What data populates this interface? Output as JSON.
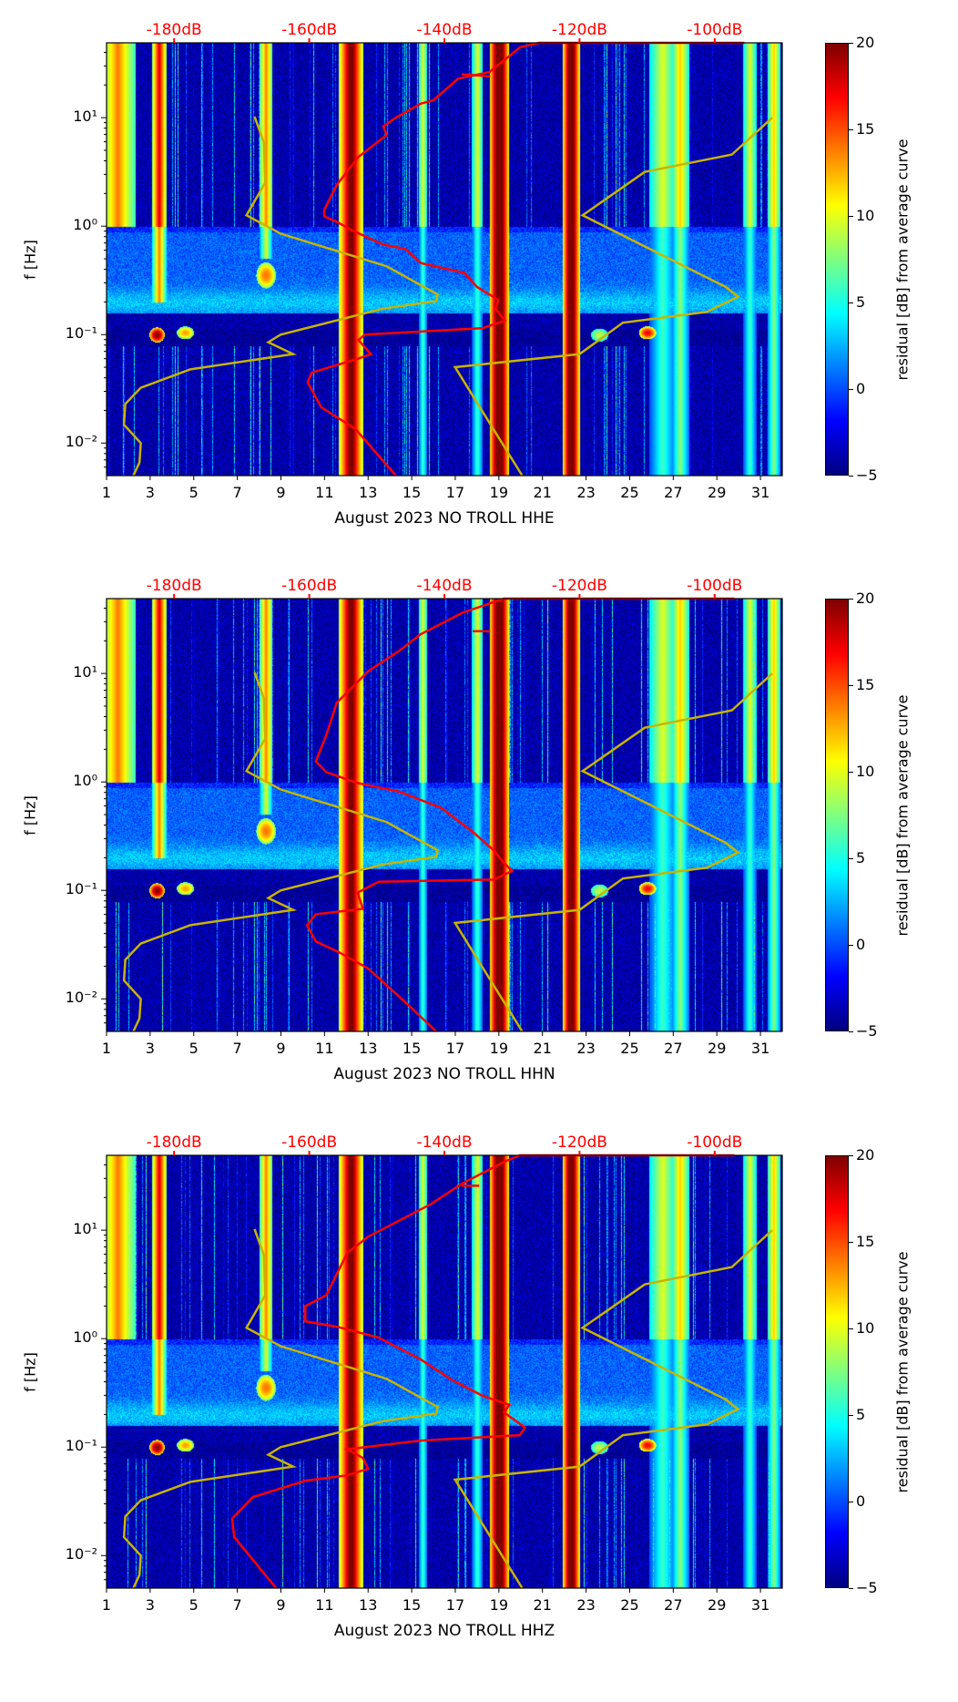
{
  "chart_data": {
    "type": "heatmap",
    "colorbar": {
      "label": "residual [dB] from average curve",
      "range": [
        -5,
        20
      ],
      "ticks": [
        "20",
        "15",
        "10",
        "5",
        "0",
        "−5"
      ],
      "tick_values": [
        20,
        15,
        10,
        5,
        0,
        -5
      ],
      "colormap": "jet"
    },
    "x_ticks": [
      "1",
      "3",
      "5",
      "7",
      "9",
      "11",
      "13",
      "15",
      "17",
      "19",
      "21",
      "23",
      "25",
      "27",
      "29",
      "31"
    ],
    "x_tick_values": [
      1,
      3,
      5,
      7,
      9,
      11,
      13,
      15,
      17,
      19,
      21,
      23,
      25,
      27,
      29,
      31
    ],
    "xlim": [
      1,
      32
    ],
    "top_axis": {
      "labels": [
        "-180dB",
        "-160dB",
        "-140dB",
        "-120dB",
        "-100dB"
      ],
      "tick_days": [
        4.1,
        10.3,
        16.5,
        22.7,
        28.9
      ],
      "color": "#ff0000"
    },
    "ylabel": "f [Hz]",
    "y_ticks": [
      "10¹",
      "10⁰",
      "10⁻¹",
      "10⁻²"
    ],
    "y_tick_values": [
      10,
      1,
      0.1,
      0.01
    ],
    "ylim_log10": [
      -2.3,
      1.69
    ],
    "reference_curve_color": "#c8b400",
    "psd_curve_color": "#ff0000",
    "reference_low_curve": [
      [
        7.79,
        1.01
      ],
      [
        8.22,
        0.77
      ],
      [
        8.28,
        0.4
      ],
      [
        7.42,
        0.1
      ],
      [
        8.99,
        -0.07
      ],
      [
        13.85,
        -0.37
      ],
      [
        16.19,
        -0.63
      ],
      [
        16.13,
        -0.69
      ],
      [
        13.7,
        -0.76
      ],
      [
        8.99,
        -1.0
      ],
      [
        8.42,
        -1.07
      ],
      [
        9.56,
        -1.18
      ],
      [
        4.85,
        -1.32
      ],
      [
        2.57,
        -1.49
      ],
      [
        1.86,
        -1.64
      ],
      [
        1.8,
        -1.83
      ],
      [
        2.57,
        -2.0
      ],
      [
        2.51,
        -2.18
      ],
      [
        2.23,
        -2.3
      ]
    ],
    "reference_high_curve": [
      [
        20.07,
        -2.3
      ],
      [
        16.99,
        -1.3
      ],
      [
        22.7,
        -1.18
      ],
      [
        24.69,
        -0.89
      ],
      [
        28.55,
        -0.79
      ],
      [
        29.97,
        -0.65
      ],
      [
        29.4,
        -0.56
      ],
      [
        22.84,
        0.1
      ],
      [
        25.69,
        0.5
      ],
      [
        29.69,
        0.66
      ],
      [
        31.54,
        1.0
      ]
    ],
    "curve_point_format": "[x position on day axis (top axis dB scale), log10 frequency Hz]",
    "panels": [
      {
        "xlabel": "August 2023 NO TROLL  HHE",
        "seed": 11,
        "psd_curve": [
          [
            14.27,
            -2.3
          ],
          [
            12.42,
            -1.87
          ],
          [
            10.85,
            -1.67
          ],
          [
            10.22,
            -1.44
          ],
          [
            10.42,
            -1.35
          ],
          [
            12.56,
            -1.22
          ],
          [
            13.13,
            -1.18
          ],
          [
            12.56,
            -1.05
          ],
          [
            12.85,
            -1.0
          ],
          [
            18.27,
            -0.94
          ],
          [
            19.27,
            -0.87
          ],
          [
            18.84,
            -0.76
          ],
          [
            18.98,
            -0.68
          ],
          [
            17.99,
            -0.56
          ],
          [
            17.41,
            -0.43
          ],
          [
            15.42,
            -0.34
          ],
          [
            14.7,
            -0.21
          ],
          [
            13.7,
            -0.17
          ],
          [
            12.28,
            -0.04
          ],
          [
            11.56,
            0.04
          ],
          [
            10.99,
            0.09
          ],
          [
            10.99,
            0.15
          ],
          [
            11.56,
            0.38
          ],
          [
            12.56,
            0.64
          ],
          [
            13.85,
            0.84
          ],
          [
            13.7,
            0.92
          ],
          [
            14.27,
            1.0
          ],
          [
            15.42,
            1.13
          ],
          [
            15.99,
            1.16
          ],
          [
            17.13,
            1.36
          ],
          [
            18.56,
            1.42
          ],
          [
            19.98,
            1.65
          ],
          [
            20.84,
            1.69
          ],
          [
            30.26,
            1.69
          ]
        ],
        "psd_hook": [
          [
            17.3,
            1.4
          ],
          [
            18.6,
            1.38
          ]
        ]
      },
      {
        "xlabel": "August 2023 NO TROLL  HHN",
        "seed": 23,
        "psd_curve": [
          [
            16.12,
            -2.3
          ],
          [
            14.92,
            -2.07
          ],
          [
            13.0,
            -1.72
          ],
          [
            11.66,
            -1.57
          ],
          [
            10.6,
            -1.47
          ],
          [
            10.2,
            -1.32
          ],
          [
            10.6,
            -1.22
          ],
          [
            12.76,
            -1.17
          ],
          [
            12.52,
            -1.02
          ],
          [
            13.48,
            -0.92
          ],
          [
            18.76,
            -0.9
          ],
          [
            19.62,
            -0.82
          ],
          [
            19.24,
            -0.75
          ],
          [
            18.76,
            -0.63
          ],
          [
            17.8,
            -0.46
          ],
          [
            16.36,
            -0.24
          ],
          [
            14.44,
            -0.09
          ],
          [
            12.52,
            -0.01
          ],
          [
            11.08,
            0.09
          ],
          [
            10.6,
            0.19
          ],
          [
            11.08,
            0.43
          ],
          [
            11.56,
            0.73
          ],
          [
            13.0,
            1.02
          ],
          [
            14.44,
            1.21
          ],
          [
            15.4,
            1.36
          ],
          [
            17.32,
            1.56
          ],
          [
            19.24,
            1.69
          ],
          [
            29.8,
            1.69
          ]
        ],
        "psd_hook": [
          [
            17.8,
            1.39
          ],
          [
            18.6,
            1.39
          ]
        ]
      },
      {
        "xlabel": "August 2023 NO TROLL  HHZ",
        "seed": 37,
        "psd_curve": [
          [
            8.78,
            -2.3
          ],
          [
            7.96,
            -2.1
          ],
          [
            6.86,
            -1.83
          ],
          [
            6.76,
            -1.66
          ],
          [
            7.72,
            -1.46
          ],
          [
            10.12,
            -1.31
          ],
          [
            12.04,
            -1.26
          ],
          [
            13.0,
            -1.2
          ],
          [
            12.76,
            -1.1
          ],
          [
            12.04,
            -1.02
          ],
          [
            15.4,
            -0.94
          ],
          [
            19.96,
            -0.89
          ],
          [
            20.2,
            -0.82
          ],
          [
            19.24,
            -0.68
          ],
          [
            19.48,
            -0.61
          ],
          [
            18.28,
            -0.53
          ],
          [
            16.84,
            -0.38
          ],
          [
            15.4,
            -0.19
          ],
          [
            13.48,
            0.01
          ],
          [
            11.56,
            0.11
          ],
          [
            10.12,
            0.16
          ],
          [
            10.12,
            0.3
          ],
          [
            11.08,
            0.4
          ],
          [
            12.04,
            0.79
          ],
          [
            13.0,
            0.94
          ],
          [
            14.44,
            1.09
          ],
          [
            15.88,
            1.24
          ],
          [
            17.32,
            1.43
          ],
          [
            19.24,
            1.63
          ],
          [
            19.96,
            1.69
          ],
          [
            29.8,
            1.69
          ]
        ],
        "psd_hook": [
          [
            17.3,
            1.41
          ],
          [
            18.1,
            1.41
          ]
        ]
      }
    ]
  }
}
